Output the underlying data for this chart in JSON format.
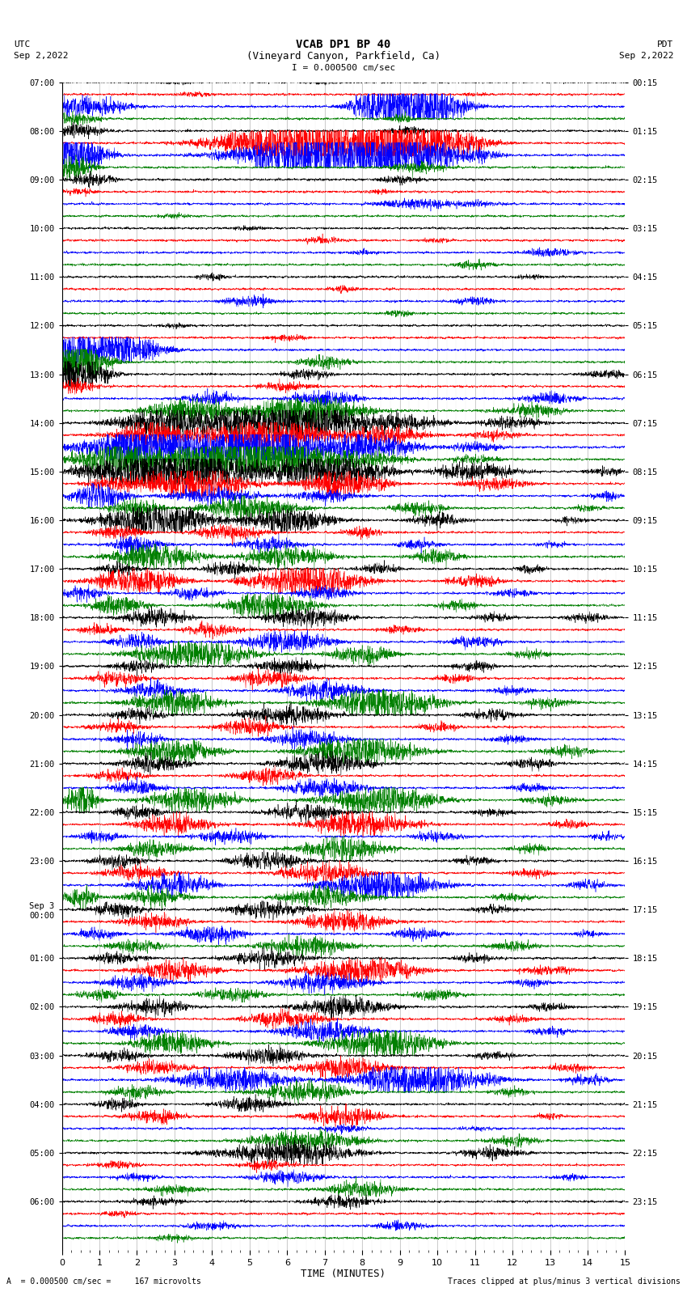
{
  "title_line1": "VCAB DP1 BP 40",
  "title_line2": "(Vineyard Canyon, Parkfield, Ca)",
  "scale_label": "I = 0.000500 cm/sec",
  "utc_label": "UTC",
  "utc_date": "Sep 2,2022",
  "pdt_label": "PDT",
  "pdt_date": "Sep 2,2022",
  "xlabel": "TIME (MINUTES)",
  "bottom_left": "A  = 0.000500 cm/sec =     167 microvolts",
  "bottom_right": "Traces clipped at plus/minus 3 vertical divisions",
  "xlim": [
    0,
    15
  ],
  "xticks": [
    0,
    1,
    2,
    3,
    4,
    5,
    6,
    7,
    8,
    9,
    10,
    11,
    12,
    13,
    14,
    15
  ],
  "left_times": [
    "07:00",
    "08:00",
    "09:00",
    "10:00",
    "11:00",
    "12:00",
    "13:00",
    "14:00",
    "15:00",
    "16:00",
    "17:00",
    "18:00",
    "19:00",
    "20:00",
    "21:00",
    "22:00",
    "23:00",
    "Sep 3\n00:00",
    "01:00",
    "02:00",
    "03:00",
    "04:00",
    "05:00",
    "06:00"
  ],
  "right_times": [
    "00:15",
    "01:15",
    "02:15",
    "03:15",
    "04:15",
    "05:15",
    "06:15",
    "07:15",
    "08:15",
    "09:15",
    "10:15",
    "11:15",
    "12:15",
    "13:15",
    "14:15",
    "15:15",
    "16:15",
    "17:15",
    "18:15",
    "19:15",
    "20:15",
    "21:15",
    "22:15",
    "23:15"
  ],
  "n_rows": 96,
  "colors_cycle": [
    "black",
    "red",
    "blue",
    "green"
  ],
  "figsize": [
    8.5,
    16.13
  ],
  "dpi": 100,
  "bg_color": "white",
  "seed": 42
}
